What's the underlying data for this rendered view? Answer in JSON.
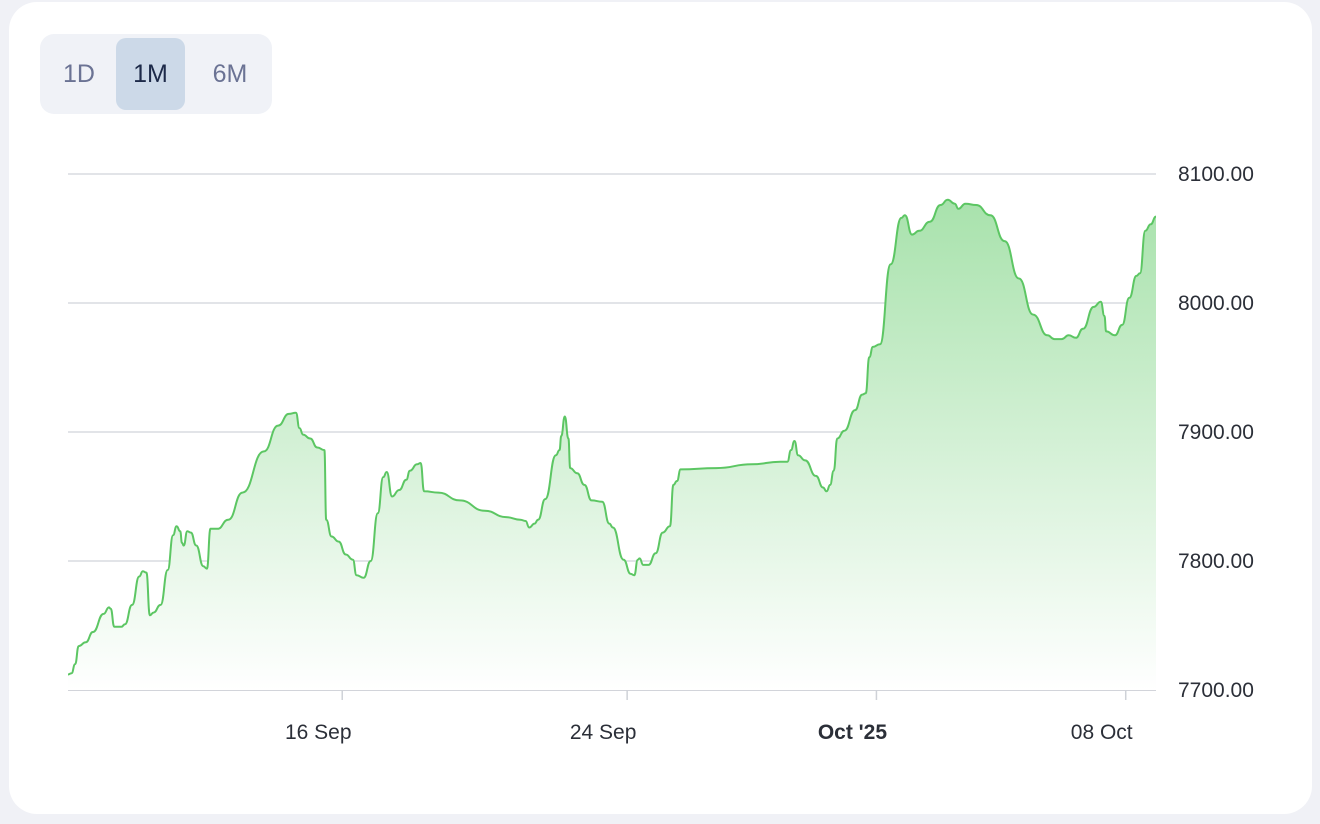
{
  "range_selector": {
    "options": [
      {
        "label": "1D",
        "active": false
      },
      {
        "label": "1M",
        "active": true
      },
      {
        "label": "6M",
        "active": false
      }
    ]
  },
  "colors": {
    "line": "#5cc663",
    "fill_top": "#a8e2ac",
    "fill_bottom": "#ffffff",
    "grid": "#d9dbe0",
    "active_button": "#ccd9e8"
  },
  "chart_data": {
    "type": "area",
    "title": "",
    "xlabel": "",
    "ylabel": "",
    "ylim": [
      7700,
      8100
    ],
    "y_ticks": [
      "7700.00",
      "7800.00",
      "7900.00",
      "8000.00",
      "8100.00"
    ],
    "x_ticks": [
      {
        "label": "16 Sep",
        "day": 16,
        "bold": false
      },
      {
        "label": "24 Sep",
        "day": 24,
        "bold": false
      },
      {
        "label": "Oct '25",
        "day": 31,
        "bold": true
      },
      {
        "label": "08 Oct",
        "day": 38,
        "bold": false
      }
    ],
    "grid": true,
    "series": [
      {
        "values": [
          [
            8.3,
            7712
          ],
          [
            8.4,
            7713
          ],
          [
            8.5,
            7720
          ],
          [
            8.6,
            7734
          ],
          [
            8.8,
            7737
          ],
          [
            9.0,
            7745
          ],
          [
            9.3,
            7759
          ],
          [
            9.45,
            7764
          ],
          [
            9.5,
            7763
          ],
          [
            9.6,
            7749
          ],
          [
            9.8,
            7749
          ],
          [
            9.9,
            7751
          ],
          [
            10.1,
            7766
          ],
          [
            10.3,
            7788
          ],
          [
            10.4,
            7792
          ],
          [
            10.5,
            7791
          ],
          [
            10.6,
            7758
          ],
          [
            10.7,
            7760
          ],
          [
            10.9,
            7766
          ],
          [
            11.1,
            7793
          ],
          [
            11.25,
            7820
          ],
          [
            11.35,
            7827
          ],
          [
            11.45,
            7823
          ],
          [
            11.5,
            7814
          ],
          [
            11.55,
            7812
          ],
          [
            11.65,
            7823
          ],
          [
            11.75,
            7822
          ],
          [
            11.9,
            7812
          ],
          [
            12.1,
            7796
          ],
          [
            12.2,
            7794
          ],
          [
            12.3,
            7825
          ],
          [
            12.5,
            7825
          ],
          [
            12.8,
            7832
          ],
          [
            13.2,
            7853
          ],
          [
            13.8,
            7885
          ],
          [
            14.2,
            7905
          ],
          [
            14.5,
            7914
          ],
          [
            14.7,
            7915
          ],
          [
            14.8,
            7903
          ],
          [
            14.9,
            7898
          ],
          [
            15.1,
            7895
          ],
          [
            15.3,
            7888
          ],
          [
            15.5,
            7886
          ],
          [
            15.55,
            7832
          ],
          [
            15.7,
            7819
          ],
          [
            15.9,
            7815
          ],
          [
            16.1,
            7805
          ],
          [
            16.3,
            7801
          ],
          [
            16.4,
            7789
          ],
          [
            16.6,
            7787
          ],
          [
            16.8,
            7800
          ],
          [
            17.0,
            7837
          ],
          [
            17.15,
            7865
          ],
          [
            17.25,
            7869
          ],
          [
            17.4,
            7850
          ],
          [
            17.6,
            7855
          ],
          [
            17.8,
            7863
          ],
          [
            17.9,
            7870
          ],
          [
            18.1,
            7875
          ],
          [
            18.2,
            7876
          ],
          [
            18.3,
            7854
          ],
          [
            18.7,
            7853
          ],
          [
            19.3,
            7847
          ],
          [
            20.0,
            7839
          ],
          [
            20.6,
            7834
          ],
          [
            21.0,
            7832
          ],
          [
            21.15,
            7831
          ],
          [
            21.25,
            7826
          ],
          [
            21.4,
            7829
          ],
          [
            21.5,
            7832
          ],
          [
            21.7,
            7848
          ],
          [
            22.0,
            7882
          ],
          [
            22.1,
            7886
          ],
          [
            22.15,
            7897
          ],
          [
            22.25,
            7912
          ],
          [
            22.35,
            7895
          ],
          [
            22.4,
            7872
          ],
          [
            22.6,
            7868
          ],
          [
            22.8,
            7859
          ],
          [
            23.0,
            7847
          ],
          [
            23.3,
            7846
          ],
          [
            23.5,
            7829
          ],
          [
            23.6,
            7826
          ],
          [
            23.9,
            7801
          ],
          [
            24.1,
            7790
          ],
          [
            24.2,
            7789
          ],
          [
            24.3,
            7801
          ],
          [
            24.35,
            7802
          ],
          [
            24.45,
            7797
          ],
          [
            24.6,
            7797
          ],
          [
            24.8,
            7806
          ],
          [
            25.0,
            7822
          ],
          [
            25.2,
            7827
          ],
          [
            25.3,
            7859
          ],
          [
            25.4,
            7862
          ],
          [
            25.5,
            7871
          ],
          [
            26.5,
            7872
          ],
          [
            27.5,
            7875
          ],
          [
            28.3,
            7877
          ],
          [
            28.5,
            7877
          ],
          [
            28.6,
            7886
          ],
          [
            28.7,
            7893
          ],
          [
            28.8,
            7882
          ],
          [
            29.0,
            7878
          ],
          [
            29.3,
            7866
          ],
          [
            29.5,
            7857
          ],
          [
            29.6,
            7854
          ],
          [
            29.7,
            7859
          ],
          [
            29.8,
            7870
          ],
          [
            29.9,
            7895
          ],
          [
            30.1,
            7901
          ],
          [
            30.4,
            7917
          ],
          [
            30.6,
            7929
          ],
          [
            30.7,
            7930
          ],
          [
            30.8,
            7958
          ],
          [
            30.9,
            7966
          ],
          [
            31.1,
            7968
          ],
          [
            31.4,
            8030
          ],
          [
            31.7,
            8066
          ],
          [
            31.8,
            8068
          ],
          [
            32.0,
            8053
          ],
          [
            32.2,
            8056
          ],
          [
            32.5,
            8063
          ],
          [
            32.8,
            8076
          ],
          [
            33.0,
            8080
          ],
          [
            33.2,
            8077
          ],
          [
            33.3,
            8073
          ],
          [
            33.5,
            8077
          ],
          [
            33.8,
            8076
          ],
          [
            34.2,
            8068
          ],
          [
            34.6,
            8048
          ],
          [
            35.0,
            8019
          ],
          [
            35.4,
            7991
          ],
          [
            35.8,
            7975
          ],
          [
            36.0,
            7972
          ],
          [
            36.2,
            7972
          ],
          [
            36.4,
            7975
          ],
          [
            36.6,
            7973
          ],
          [
            36.8,
            7980
          ],
          [
            37.1,
            7997
          ],
          [
            37.3,
            8001
          ],
          [
            37.4,
            7990
          ],
          [
            37.45,
            7978
          ],
          [
            37.7,
            7975
          ],
          [
            37.9,
            7983
          ],
          [
            38.1,
            8004
          ],
          [
            38.3,
            8021
          ],
          [
            38.4,
            8023
          ],
          [
            38.55,
            8056
          ],
          [
            38.7,
            8061
          ],
          [
            38.85,
            8067
          ]
        ]
      }
    ]
  }
}
